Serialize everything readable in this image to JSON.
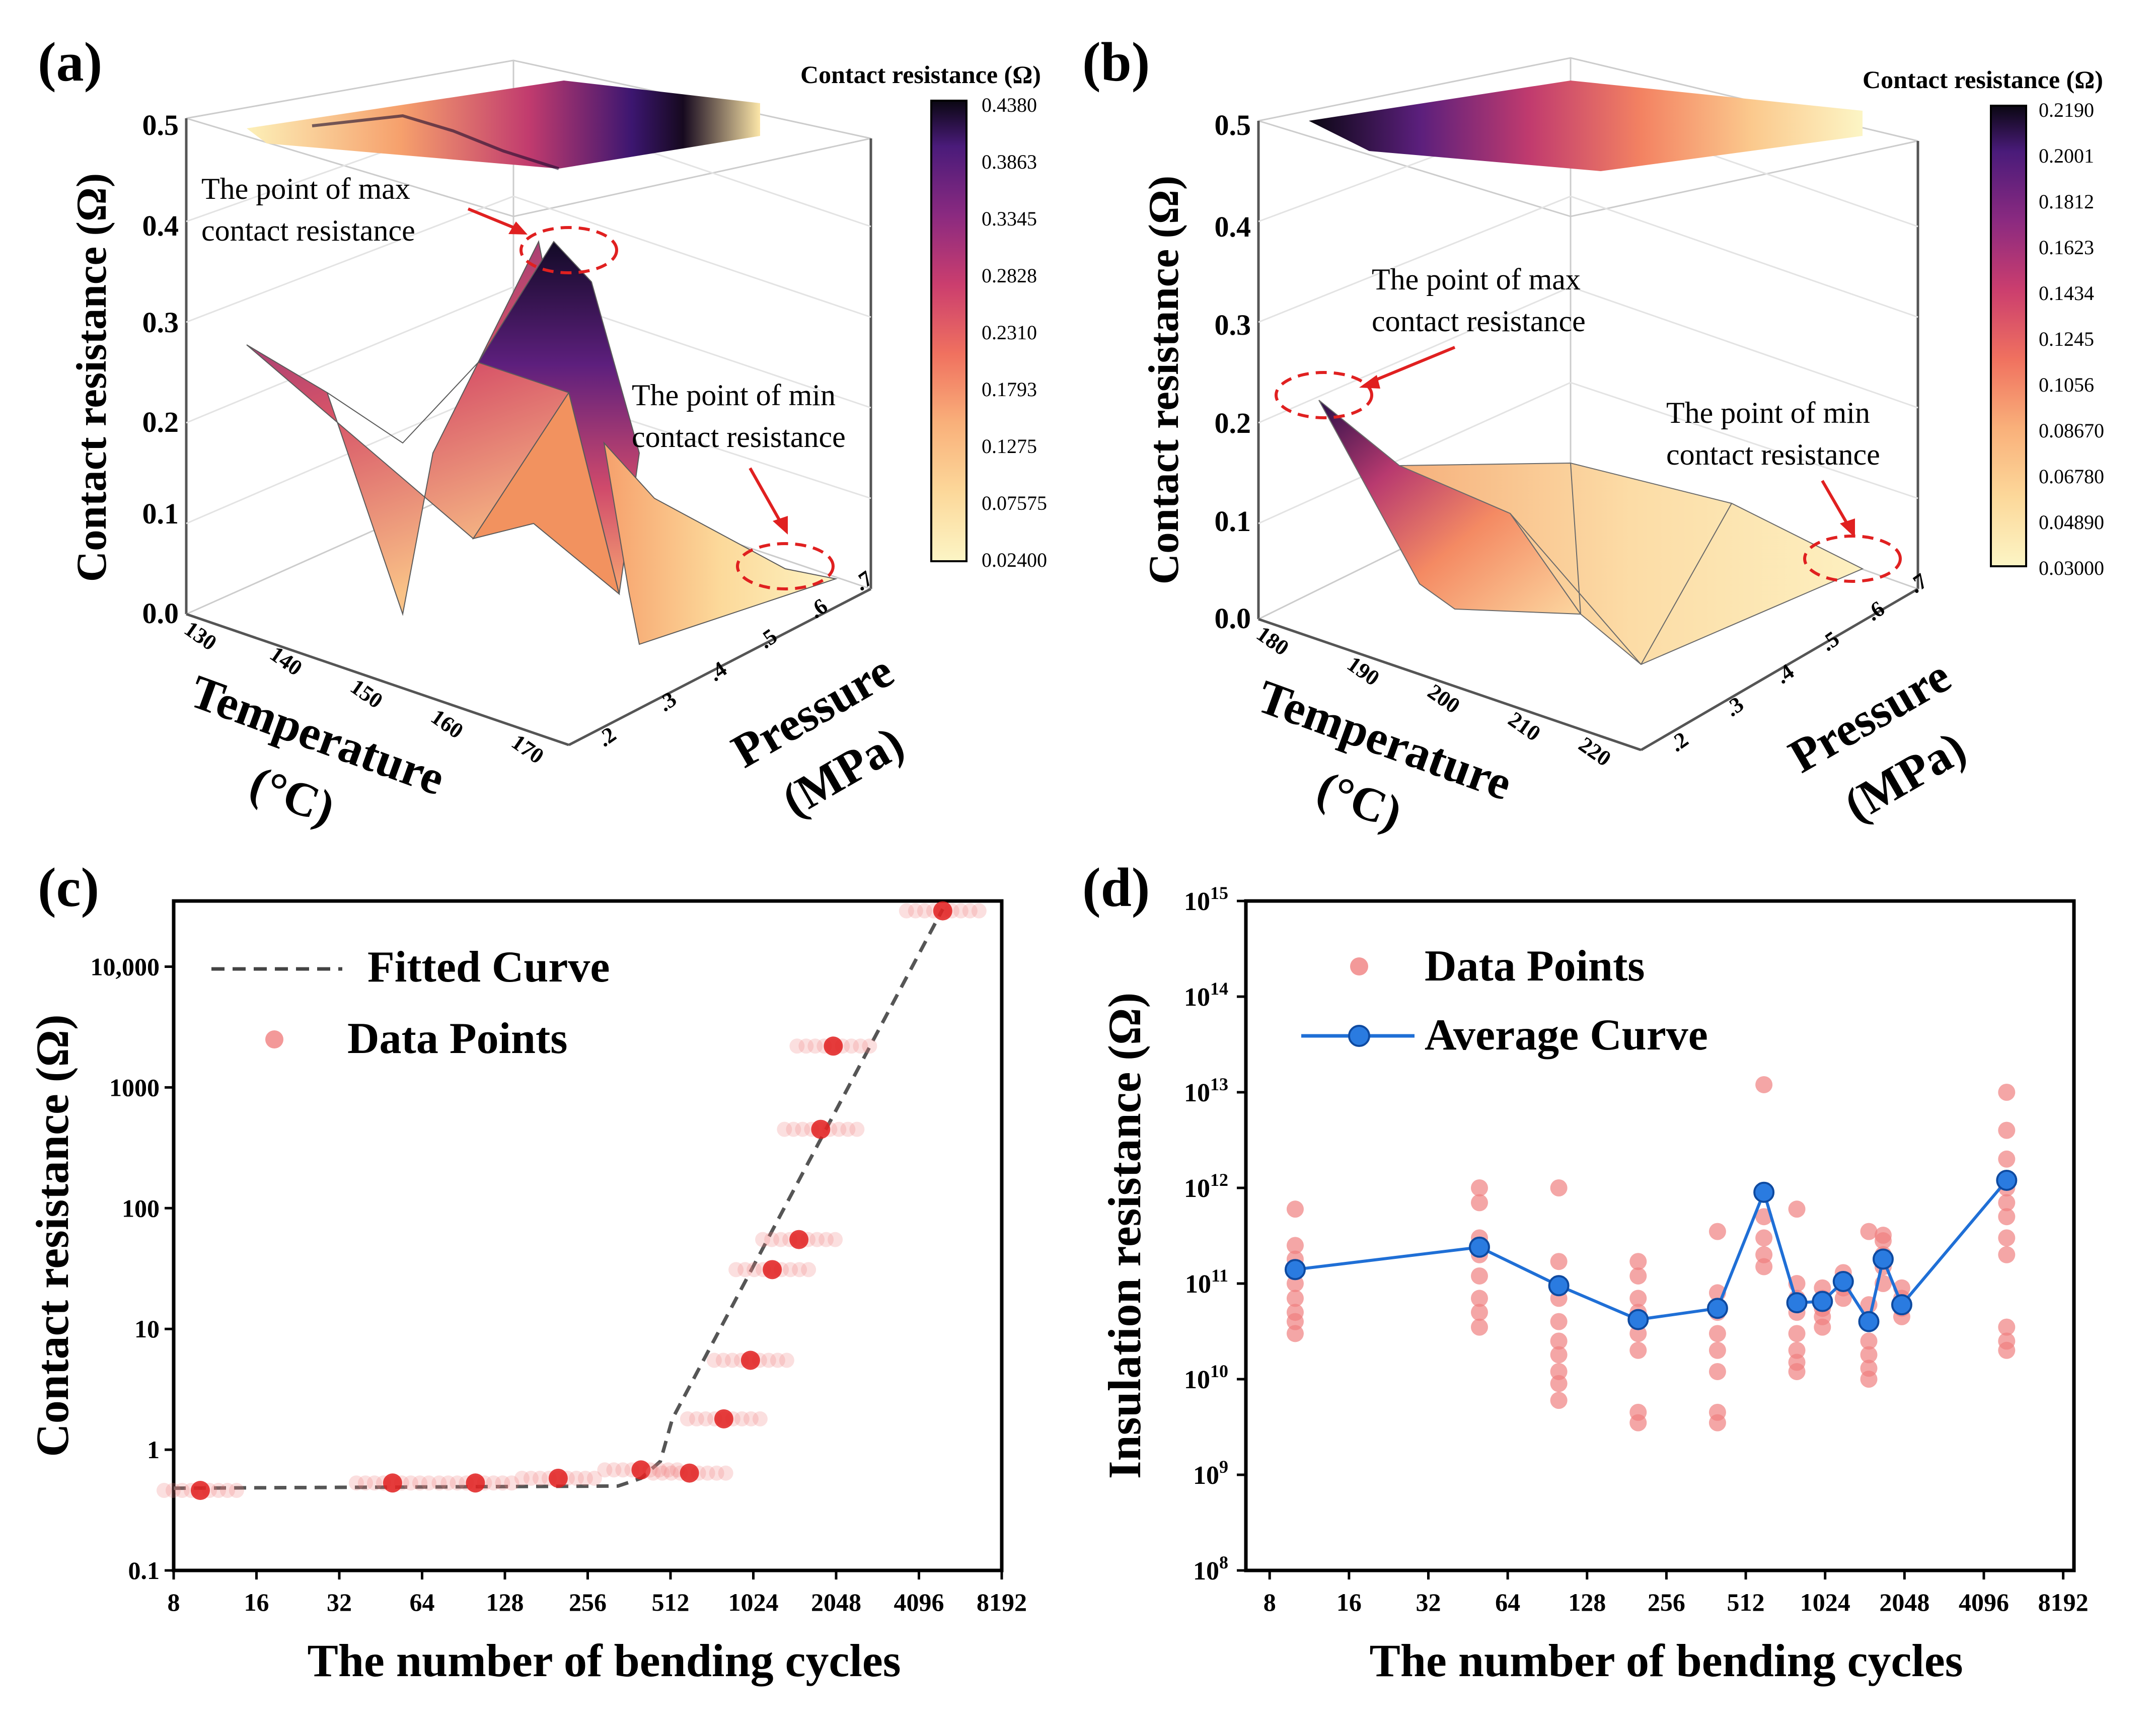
{
  "chart_data": [
    {
      "panel": "(a)",
      "type": "surface3d",
      "zlabel": "Contact resistance (Ω)",
      "xlabel_line1": "Temperature",
      "xlabel_line2": "(°C)",
      "ylabel_line1": "Pressure",
      "ylabel_line2": "(MPa)",
      "z_ticks": [
        "0.0",
        "0.1",
        "0.2",
        "0.3",
        "0.4",
        "0.5"
      ],
      "x_ticks": [
        "130",
        "140",
        "150",
        "160",
        "170"
      ],
      "y_ticks": [
        ".2",
        ".3",
        ".4",
        ".5",
        ".6",
        ".7"
      ],
      "colorbar_title": "Contact resistance (Ω)",
      "colorbar_ticks": [
        "0.4380",
        "0.3863",
        "0.3345",
        "0.2828",
        "0.2310",
        "0.1793",
        "0.1275",
        "0.07575",
        "0.02400"
      ],
      "zlim": [
        0.0,
        0.5
      ],
      "max_annotation_line1": "The point of max",
      "max_annotation_line2": "contact resistance",
      "min_annotation_line1": "The point of min",
      "min_annotation_line2": "contact resistance",
      "max_value": 0.438,
      "min_value": 0.024
    },
    {
      "panel": "(b)",
      "type": "surface3d",
      "zlabel": "Contact resistance (Ω)",
      "xlabel_line1": "Temperature",
      "xlabel_line2": "(°C)",
      "ylabel_line1": "Pressure",
      "ylabel_line2": "(MPa)",
      "z_ticks": [
        "0.0",
        "0.1",
        "0.2",
        "0.3",
        "0.4",
        "0.5"
      ],
      "x_ticks": [
        "180",
        "190",
        "200",
        "210",
        "220"
      ],
      "y_ticks": [
        ".2",
        ".3",
        ".4",
        ".5",
        ".6",
        ".7"
      ],
      "colorbar_title": "Contact resistance (Ω)",
      "colorbar_ticks": [
        "0.2190",
        "0.2001",
        "0.1812",
        "0.1623",
        "0.1434",
        "0.1245",
        "0.1056",
        "0.08670",
        "0.06780",
        "0.04890",
        "0.03000"
      ],
      "zlim": [
        0.0,
        0.5
      ],
      "max_annotation_line1": "The point of max",
      "max_annotation_line2": "contact resistance",
      "min_annotation_line1": "The point of min",
      "min_annotation_line2": "contact resistance",
      "max_value": 0.219,
      "min_value": 0.03
    },
    {
      "panel": "(c)",
      "type": "scatter",
      "xscale": "log2",
      "yscale": "log10",
      "xlabel": "The number of bending cycles",
      "ylabel": "Contact resistance (Ω)",
      "xlim": [
        8,
        8192
      ],
      "ylim": [
        0.1,
        35000
      ],
      "x_ticks": [
        8,
        16,
        32,
        64,
        128,
        256,
        512,
        1024,
        2048,
        4096,
        8192
      ],
      "x_tick_labels": [
        "8",
        "16",
        "32",
        "64",
        "128",
        "256",
        "512",
        "1024",
        "2048",
        "4096",
        "8192"
      ],
      "y_ticks": [
        0.1,
        1,
        10,
        100,
        1000,
        10000
      ],
      "y_tick_labels": [
        "0.1",
        "1",
        "10",
        "100",
        "1000",
        "10,000"
      ],
      "legend": [
        "Fitted Curve",
        "Data Points"
      ],
      "legend_position": "top-left",
      "fitted_curve": {
        "x": [
          8,
          330,
          400,
          470,
          520,
          5000
        ],
        "y": [
          0.48,
          0.5,
          0.58,
          0.8,
          1.8,
          30000
        ]
      },
      "data_points": [
        {
          "x": 10,
          "y": 0.46
        },
        {
          "x": 50,
          "y": 0.53
        },
        {
          "x": 100,
          "y": 0.53
        },
        {
          "x": 200,
          "y": 0.58
        },
        {
          "x": 400,
          "y": 0.68
        },
        {
          "x": 600,
          "y": 0.64
        },
        {
          "x": 800,
          "y": 1.8
        },
        {
          "x": 1000,
          "y": 5.5
        },
        {
          "x": 1200,
          "y": 31
        },
        {
          "x": 1500,
          "y": 55
        },
        {
          "x": 1800,
          "y": 450
        },
        {
          "x": 2000,
          "y": 2200
        },
        {
          "x": 5000,
          "y": 29000
        }
      ]
    },
    {
      "panel": "(d)",
      "type": "scatter",
      "xscale": "log2",
      "yscale": "log10",
      "xlabel": "The number of bending cycles",
      "ylabel": "Insulation resistance (Ω)",
      "xlim": [
        6.5,
        9000
      ],
      "ylim": [
        100000000.0,
        1000000000000000.0
      ],
      "x_ticks": [
        8,
        16,
        32,
        64,
        128,
        256,
        512,
        1024,
        2048,
        4096,
        8192
      ],
      "x_tick_labels": [
        "8",
        "16",
        "32",
        "64",
        "128",
        "256",
        "512",
        "1024",
        "2048",
        "4096",
        "8192"
      ],
      "y_tick_exponents": [
        "8",
        "9",
        "10",
        "11",
        "12",
        "13",
        "14",
        "15"
      ],
      "y_tick_base": "10",
      "legend": [
        "Data Points",
        "Average Curve"
      ],
      "legend_position": "top-left",
      "average_curve": {
        "x": [
          10,
          50,
          100,
          200,
          400,
          600,
          800,
          1000,
          1200,
          1500,
          1700,
          2000,
          5000
        ],
        "y": [
          140000000000.0,
          240000000000.0,
          95000000000.0,
          42000000000.0,
          55000000000.0,
          900000000000.0,
          63000000000.0,
          65000000000.0,
          105000000000.0,
          40000000000.0,
          180000000000.0,
          60000000000.0,
          1200000000000.0
        ]
      },
      "scatter_groups": [
        {
          "x": 10,
          "y": [
            30000000000.0,
            40000000000.0,
            50000000000.0,
            70000000000.0,
            100000000000.0,
            140000000000.0,
            180000000000.0,
            250000000000.0,
            600000000000.0
          ]
        },
        {
          "x": 50,
          "y": [
            35000000000.0,
            50000000000.0,
            70000000000.0,
            120000000000.0,
            200000000000.0,
            300000000000.0,
            700000000000.0,
            1000000000000.0
          ]
        },
        {
          "x": 100,
          "y": [
            6000000000.0,
            9000000000.0,
            12000000000.0,
            18000000000.0,
            25000000000.0,
            40000000000.0,
            70000000000.0,
            100000000000.0,
            170000000000.0,
            1000000000000.0
          ]
        },
        {
          "x": 200,
          "y": [
            3500000000.0,
            4500000000.0,
            20000000000.0,
            30000000000.0,
            50000000000.0,
            70000000000.0,
            120000000000.0,
            170000000000.0
          ]
        },
        {
          "x": 400,
          "y": [
            3500000000.0,
            4500000000.0,
            12000000000.0,
            20000000000.0,
            30000000000.0,
            50000000000.0,
            80000000000.0,
            350000000000.0
          ]
        },
        {
          "x": 600,
          "y": [
            150000000000.0,
            200000000000.0,
            300000000000.0,
            500000000000.0,
            900000000000.0,
            12000000000000.0
          ]
        },
        {
          "x": 800,
          "y": [
            12000000000.0,
            15000000000.0,
            20000000000.0,
            30000000000.0,
            50000000000.0,
            70000000000.0,
            100000000000.0,
            600000000000.0
          ]
        },
        {
          "x": 1000,
          "y": [
            35000000000.0,
            45000000000.0,
            55000000000.0,
            70000000000.0,
            90000000000.0
          ]
        },
        {
          "x": 1200,
          "y": [
            70000000000.0,
            90000000000.0,
            110000000000.0,
            130000000000.0
          ]
        },
        {
          "x": 1500,
          "y": [
            10000000000.0,
            13000000000.0,
            18000000000.0,
            25000000000.0,
            40000000000.0,
            60000000000.0,
            350000000000.0
          ]
        },
        {
          "x": 1700,
          "y": [
            100000000000.0,
            150000000000.0,
            200000000000.0,
            280000000000.0,
            320000000000.0
          ]
        },
        {
          "x": 2000,
          "y": [
            45000000000.0,
            55000000000.0,
            70000000000.0,
            90000000000.0
          ]
        },
        {
          "x": 5000,
          "y": [
            20000000000.0,
            25000000000.0,
            35000000000.0,
            200000000000.0,
            300000000000.0,
            500000000000.0,
            700000000000.0,
            1000000000000.0,
            2000000000000.0,
            4000000000000.0,
            10000000000000.0
          ]
        }
      ]
    }
  ]
}
